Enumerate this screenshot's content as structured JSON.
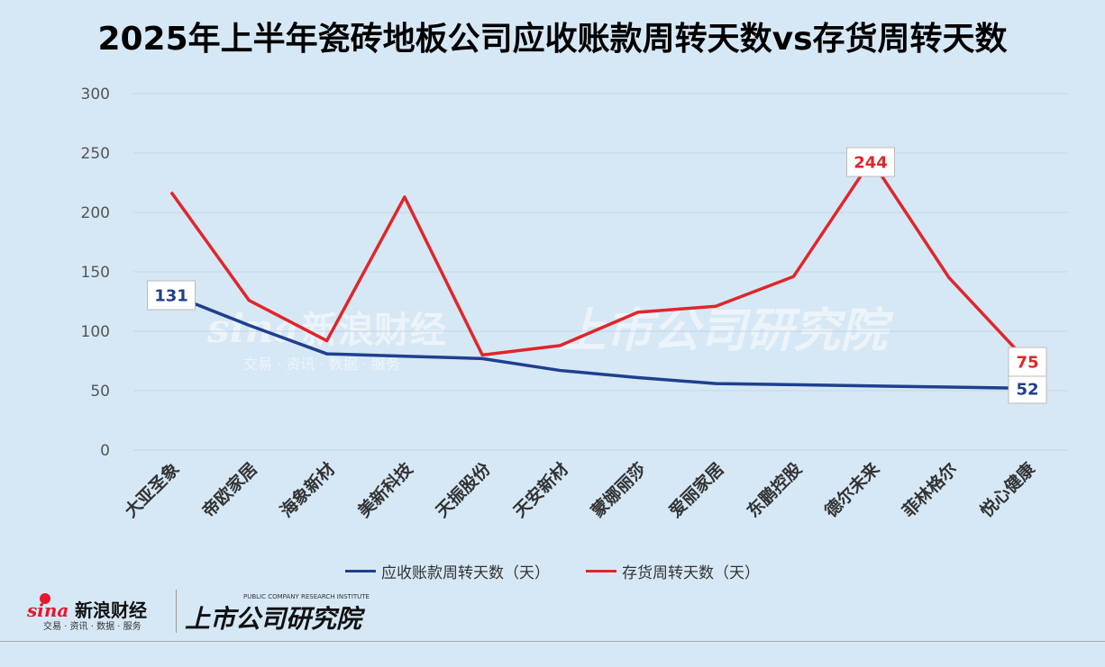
{
  "chart_data": {
    "type": "line",
    "title": "2025年上半年瓷砖地板公司应收账款周转天数vs存货周转天数",
    "categories": [
      "大亚圣象",
      "帝欧家居",
      "海象新材",
      "美新科技",
      "天振股份",
      "天安新材",
      "蒙娜丽莎",
      "爱丽家居",
      "东鹏控股",
      "德尔未来",
      "菲林格尔",
      "悦心健康"
    ],
    "ylim": [
      0,
      300
    ],
    "yticks": [
      0,
      50,
      100,
      150,
      200,
      250,
      300
    ],
    "grid": true,
    "legend_position": "bottom",
    "series": [
      {
        "name": "应收账款周转天数（天）",
        "color": "#1f3f8f",
        "values": [
          131,
          105,
          81,
          79,
          77,
          67,
          61,
          56,
          55,
          54,
          53,
          52
        ],
        "labels": [
          {
            "index": 0,
            "text": "131"
          },
          {
            "index": 11,
            "text": "52"
          }
        ]
      },
      {
        "name": "存货周转天数（天）",
        "color": "#e0262b",
        "values": [
          217,
          126,
          92,
          213,
          80,
          88,
          116,
          121,
          146,
          244,
          145,
          75
        ],
        "labels": [
          {
            "index": 9,
            "text": "244"
          },
          {
            "index": 11,
            "text": "75"
          }
        ]
      }
    ]
  },
  "logos": {
    "sina_word": "sina",
    "sina_cn": "新浪财经",
    "sina_sub": "交易 · 资讯 · 数据 · 服务",
    "research_cn": "上市公司研究院",
    "research_en": "PUBLIC COMPANY RESEARCH INSTITUTE"
  }
}
